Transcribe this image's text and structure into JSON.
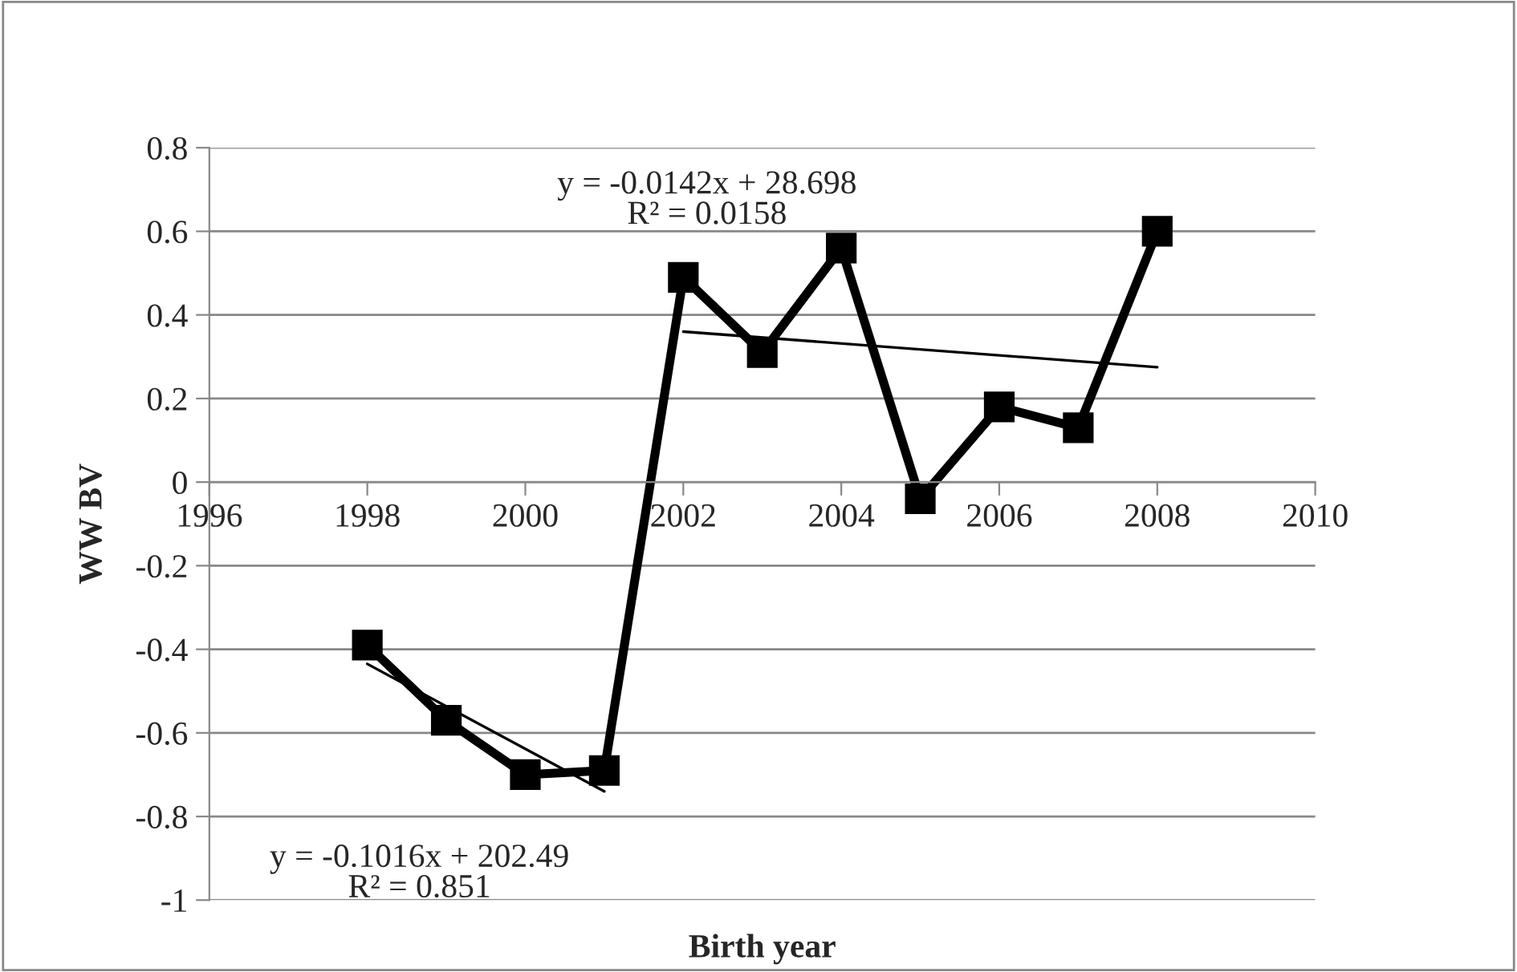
{
  "chart_data": {
    "type": "line",
    "xlabel": "Birth year",
    "ylabel": "WW BV",
    "x": [
      1998,
      1999,
      2000,
      2001,
      2002,
      2003,
      2004,
      2005,
      2006,
      2007,
      2008
    ],
    "series": [
      {
        "color": "#000000",
        "marker": "square",
        "values": [
          -0.39,
          -0.57,
          -0.7,
          -0.69,
          0.49,
          0.31,
          0.56,
          -0.04,
          0.18,
          0.13,
          0.6
        ]
      },
      {
        "color": "#000000",
        "marker": "none",
        "x": [
          1998,
          2001
        ],
        "values": [
          -0.435,
          -0.74
        ]
      },
      {
        "color": "#000000",
        "marker": "none",
        "x": [
          2002,
          2008
        ],
        "values": [
          0.36,
          0.275
        ]
      }
    ],
    "annotations": [
      "y = -0.0142x + 28.698\nR² = 0.0158",
      "y = -0.1016x + 202.49\nR² = 0.851"
    ],
    "xlim": [
      1996,
      2010
    ],
    "xticks": [
      1996,
      1998,
      2000,
      2002,
      2004,
      2006,
      2008,
      2010
    ],
    "ylim": [
      -1,
      0.8
    ],
    "yticks": [
      -1,
      -0.8,
      -0.6,
      -0.4,
      -0.2,
      0,
      0.2,
      0.4,
      0.6,
      0.8
    ],
    "grid": "y",
    "legend": false,
    "line_style": "solid"
  }
}
